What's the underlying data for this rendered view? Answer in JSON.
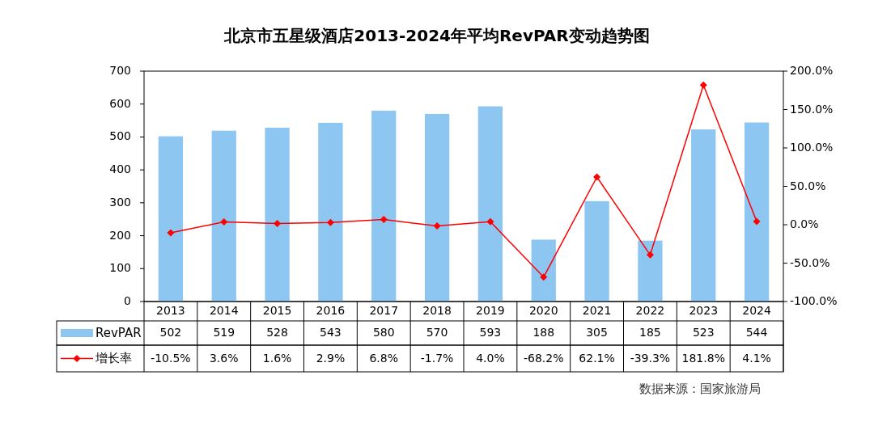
{
  "chart_data": {
    "type": "bar",
    "title": "北京市五星级酒店2013-2024年平均RevPAR变动趋势图",
    "categories": [
      "2013",
      "2014",
      "2015",
      "2016",
      "2017",
      "2018",
      "2019",
      "2020",
      "2021",
      "2022",
      "2023",
      "2024"
    ],
    "series": [
      {
        "name": "RevPAR",
        "color": "#8ec6f2",
        "values": [
          502,
          519,
          528,
          543,
          580,
          570,
          593,
          188,
          305,
          185,
          523,
          544
        ]
      },
      {
        "name": "增长率",
        "type": "line",
        "axis": "y2",
        "color": "#ff0000",
        "values": [
          -10.5,
          3.6,
          1.6,
          2.9,
          6.8,
          -1.7,
          4.0,
          -68.2,
          62.1,
          -39.3,
          181.8,
          4.1
        ],
        "value_labels": [
          "-10.5%",
          "3.6%",
          "1.6%",
          "2.9%",
          "6.8%",
          "-1.7%",
          "4.0%",
          "-68.2%",
          "62.1%",
          "-39.3%",
          "181.8%",
          "4.1%"
        ]
      }
    ],
    "ylim": [
      0,
      700
    ],
    "yticks": [
      0,
      100,
      200,
      300,
      400,
      500,
      600,
      700
    ],
    "y2lim": [
      -100,
      200
    ],
    "y2ticks": [
      {
        "value": -100,
        "label": "-100.0%"
      },
      {
        "value": -50,
        "label": "-50.0%"
      },
      {
        "value": 0,
        "label": "0.0%"
      },
      {
        "value": 50,
        "label": "50.0%"
      },
      {
        "value": 100,
        "label": "100.0%"
      },
      {
        "value": 150,
        "label": "150.0%"
      },
      {
        "value": 200,
        "label": "200.0%"
      }
    ],
    "data_labels": true,
    "marker": "diamond",
    "line_style": "solid",
    "legend": "bottom",
    "grid": false,
    "annotations": [
      "数据来源：国家旅游局"
    ]
  }
}
